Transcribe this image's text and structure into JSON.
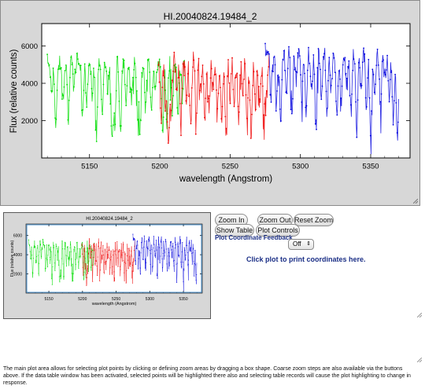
{
  "chart_data": {
    "type": "scatter",
    "title": "HI.20040824.19484_2",
    "xlabel": "wavelength (Angstrom)",
    "ylabel": "Flux (relative counts)",
    "xlim": [
      5116,
      5378
    ],
    "ylim": [
      0,
      7200
    ],
    "x_ticks": [
      "5150",
      "5200",
      "5250",
      "5300",
      "5350"
    ],
    "y_ticks": [
      "2000",
      "4000",
      "6000"
    ],
    "grid": false,
    "series": [
      {
        "color": "#00dd00",
        "x_range": [
          5120,
          5218
        ],
        "continuum": 5200,
        "absorption_lines": [
          [
            5123,
            3600
          ],
          [
            5126,
            1400
          ],
          [
            5131,
            3000
          ],
          [
            5135,
            2200
          ],
          [
            5139,
            3700
          ],
          [
            5145,
            2300
          ],
          [
            5148,
            2900
          ],
          [
            5152,
            3400
          ],
          [
            5155,
            1700
          ],
          [
            5159,
            2600
          ],
          [
            5163,
            3800
          ],
          [
            5166,
            900
          ],
          [
            5168,
            1800
          ],
          [
            5172,
            1200
          ],
          [
            5176,
            2800
          ],
          [
            5180,
            3200
          ],
          [
            5184,
            2300
          ],
          [
            5186,
            1600
          ],
          [
            5190,
            3100
          ],
          [
            5194,
            2500
          ],
          [
            5197,
            3500
          ],
          [
            5202,
            1500
          ],
          [
            5205,
            1900
          ],
          [
            5209,
            2600
          ],
          [
            5213,
            2200
          ],
          [
            5216,
            3300
          ]
        ]
      },
      {
        "color": "#ee0000",
        "x_range": [
          5199,
          5278
        ],
        "continuum": 5400,
        "absorption_lines": [
          [
            5201,
            2100
          ],
          [
            5204,
            2800
          ],
          [
            5206,
            700
          ],
          [
            5208,
            2300
          ],
          [
            5212,
            3600
          ],
          [
            5215,
            1900
          ],
          [
            5219,
            3100
          ],
          [
            5222,
            1600
          ],
          [
            5226,
            2600
          ],
          [
            5229,
            3400
          ],
          [
            5232,
            1700
          ],
          [
            5235,
            2600
          ],
          [
            5238,
            3700
          ],
          [
            5241,
            2500
          ],
          [
            5244,
            2200
          ],
          [
            5247,
            1600
          ],
          [
            5250,
            3300
          ],
          [
            5253,
            2800
          ],
          [
            5256,
            2100
          ],
          [
            5259,
            3600
          ],
          [
            5262,
            2300
          ],
          [
            5265,
            1200
          ],
          [
            5268,
            2600
          ],
          [
            5271,
            2900
          ],
          [
            5274,
            2100
          ],
          [
            5276,
            3300
          ]
        ]
      },
      {
        "color": "#0000dd",
        "x_range": [
          5275,
          5370
        ],
        "continuum": 5700,
        "absorption_lines": [
          [
            5279,
            3200
          ],
          [
            5283,
            2700
          ],
          [
            5286,
            1800
          ],
          [
            5290,
            3600
          ],
          [
            5294,
            2600
          ],
          [
            5297,
            4100
          ],
          [
            5301,
            3000
          ],
          [
            5304,
            2200
          ],
          [
            5308,
            3500
          ],
          [
            5311,
            1200
          ],
          [
            5315,
            3300
          ],
          [
            5319,
            2300
          ],
          [
            5322,
            3900
          ],
          [
            5326,
            1900
          ],
          [
            5329,
            2900
          ],
          [
            5333,
            3500
          ],
          [
            5336,
            2400
          ],
          [
            5340,
            1500
          ],
          [
            5343,
            3600
          ],
          [
            5347,
            2600
          ],
          [
            5350,
            1000
          ],
          [
            5353,
            3300
          ],
          [
            5357,
            2600
          ],
          [
            5360,
            4000
          ],
          [
            5363,
            3200
          ],
          [
            5366,
            2100
          ],
          [
            5369,
            800
          ]
        ]
      }
    ]
  },
  "thumbnail": {
    "title": "HI.20040824.19484_2",
    "xlabel": "wavelength (Angstrom)",
    "ylabel": "Flux (relative counts)",
    "x_ticks": [
      "5150",
      "5200",
      "5250",
      "5300",
      "5350"
    ],
    "y_ticks": [
      "2000",
      "4000",
      "6000"
    ]
  },
  "controls": {
    "zoom_in": "Zoom In",
    "zoom_out": "Zoom Out",
    "reset_zoom": "Reset Zoom",
    "show_table": "Show Table",
    "plot_controls": "Plot Controls",
    "feedback_label": "Plot Coordinate Feedback",
    "feedback_value": "Off",
    "hint": "Click plot to print coordinates here."
  },
  "help_text": "The main plot area allows for selecting plot points by clicking or defining zoom areas by dragging a box shape. Coarse zoom steps are also available via the buttons above. If the data table window has been activated, selected points will be highlighted there also and selecting table records will cause the plot highlighting to change in response."
}
